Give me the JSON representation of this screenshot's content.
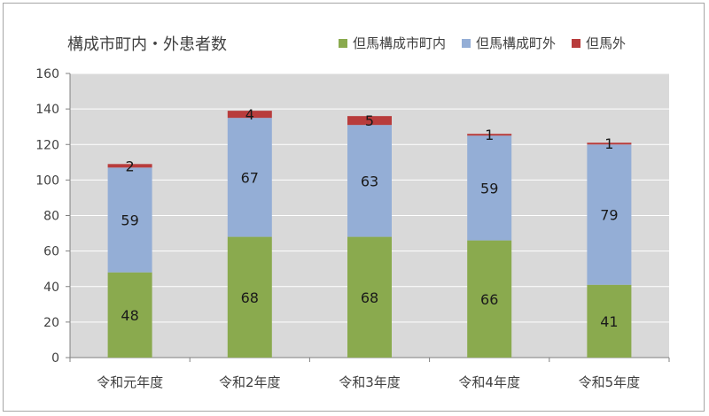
{
  "chart_data": {
    "type": "bar",
    "stacked": true,
    "title": "構成市町内・外患者数",
    "categories": [
      "令和元年度",
      "令和2年度",
      "令和3年度",
      "令和4年度",
      "令和5年度"
    ],
    "series": [
      {
        "name": "但馬構成市町内",
        "color": "#8aaa4e",
        "values": [
          48,
          68,
          68,
          66,
          41
        ]
      },
      {
        "name": "但馬構成町外",
        "color": "#94aed6",
        "values": [
          59,
          67,
          63,
          59,
          79
        ]
      },
      {
        "name": "但馬外",
        "color": "#b83c3c",
        "values": [
          2,
          4,
          5,
          1,
          1
        ]
      }
    ],
    "ylim": [
      0,
      160
    ],
    "yticks": [
      0,
      20,
      40,
      60,
      80,
      100,
      120,
      140,
      160
    ],
    "grid": true,
    "legend_position": "top-right",
    "plot_background": "#d9d9d9"
  }
}
